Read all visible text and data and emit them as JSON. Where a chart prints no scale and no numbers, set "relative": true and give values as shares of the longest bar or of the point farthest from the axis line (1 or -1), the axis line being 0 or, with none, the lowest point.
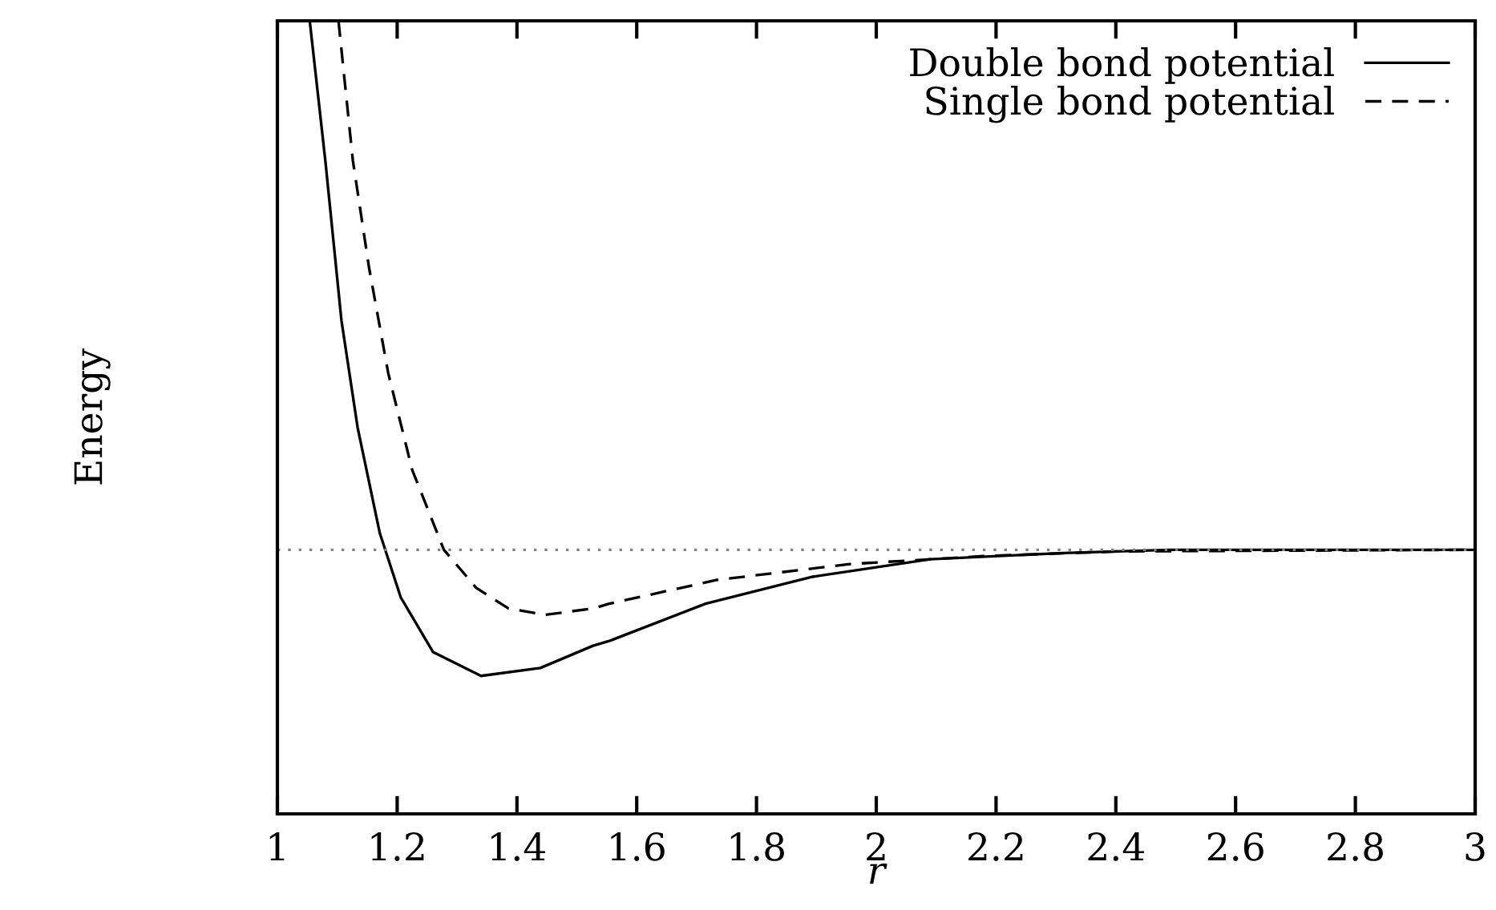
{
  "chart_data": {
    "type": "line",
    "relative": true,
    "xlabel": "r",
    "ylabel": "Energy",
    "xlim": [
      1,
      3
    ],
    "xticks": [
      1,
      1.2,
      1.4,
      1.6,
      1.8,
      2,
      2.2,
      2.4,
      2.6,
      2.8,
      3
    ],
    "tick_labels": "x",
    "legend": "top right",
    "grid": false,
    "ref_lines": [
      {
        "axis": "y",
        "value": 0.333,
        "color": "#808080",
        "line_style": "dotted"
      }
    ],
    "series": [
      {
        "name": "Double bond potential",
        "color": "#000000",
        "line_style": "solid",
        "x": [
          1.054,
          1.08,
          1.107,
          1.134,
          1.171,
          1.206,
          1.26,
          1.34,
          1.439,
          1.527,
          1.554,
          1.715,
          1.894,
          2.09,
          2.312,
          2.49,
          3.0
        ],
        "values": [
          1.0,
          0.824,
          0.622,
          0.487,
          0.354,
          0.273,
          0.204,
          0.174,
          0.184,
          0.212,
          0.218,
          0.265,
          0.299,
          0.321,
          0.329,
          0.333,
          0.333
        ]
      },
      {
        "name": "Single bond potential",
        "color": "#000000",
        "line_style": "dashed",
        "x": [
          1.102,
          1.126,
          1.153,
          1.185,
          1.225,
          1.278,
          1.332,
          1.386,
          1.447,
          1.527,
          1.554,
          1.734,
          1.956,
          2.178,
          2.403,
          3.0
        ],
        "values": [
          1.0,
          0.824,
          0.689,
          0.556,
          0.434,
          0.333,
          0.285,
          0.259,
          0.251,
          0.259,
          0.265,
          0.295,
          0.315,
          0.325,
          0.331,
          0.333
        ]
      }
    ]
  }
}
